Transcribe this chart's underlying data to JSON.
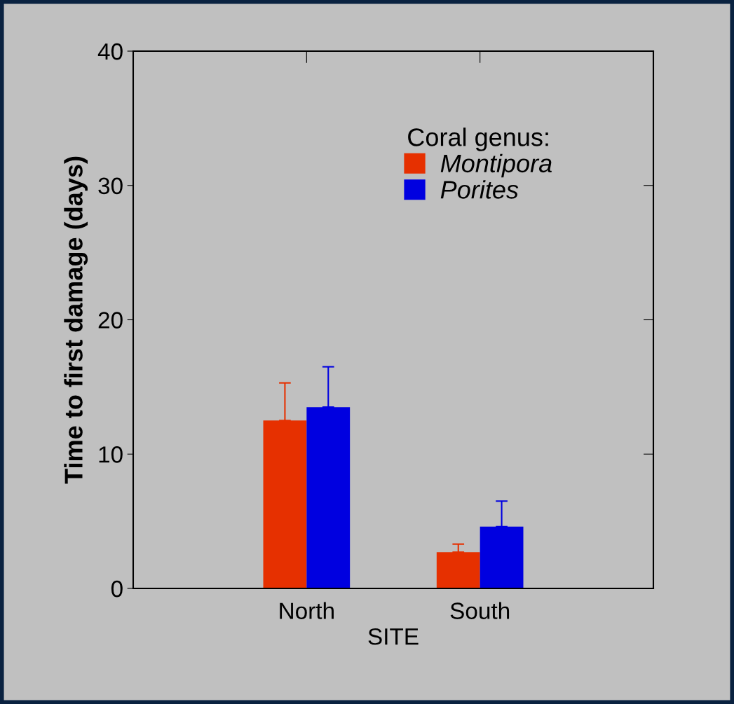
{
  "chart_data": {
    "type": "bar",
    "xlabel": "SITE",
    "ylabel": "Time to first damage (days)",
    "legend_title": "Coral genus:",
    "categories": [
      "North",
      "South"
    ],
    "series": [
      {
        "name": "Montipora",
        "color": "#e63000",
        "values": [
          12.5,
          2.7
        ],
        "errors": [
          [
            12.5,
            15.3
          ],
          [
            2.7,
            3.3
          ]
        ]
      },
      {
        "name": "Porites",
        "color": "#0000e0",
        "values": [
          13.5,
          4.6
        ],
        "errors": [
          [
            13.5,
            16.5
          ],
          [
            4.6,
            6.5
          ]
        ]
      }
    ],
    "ylim": [
      0,
      40
    ],
    "yticks": [
      0,
      10,
      20,
      30,
      40
    ],
    "grid": false,
    "legend": "top right"
  }
}
